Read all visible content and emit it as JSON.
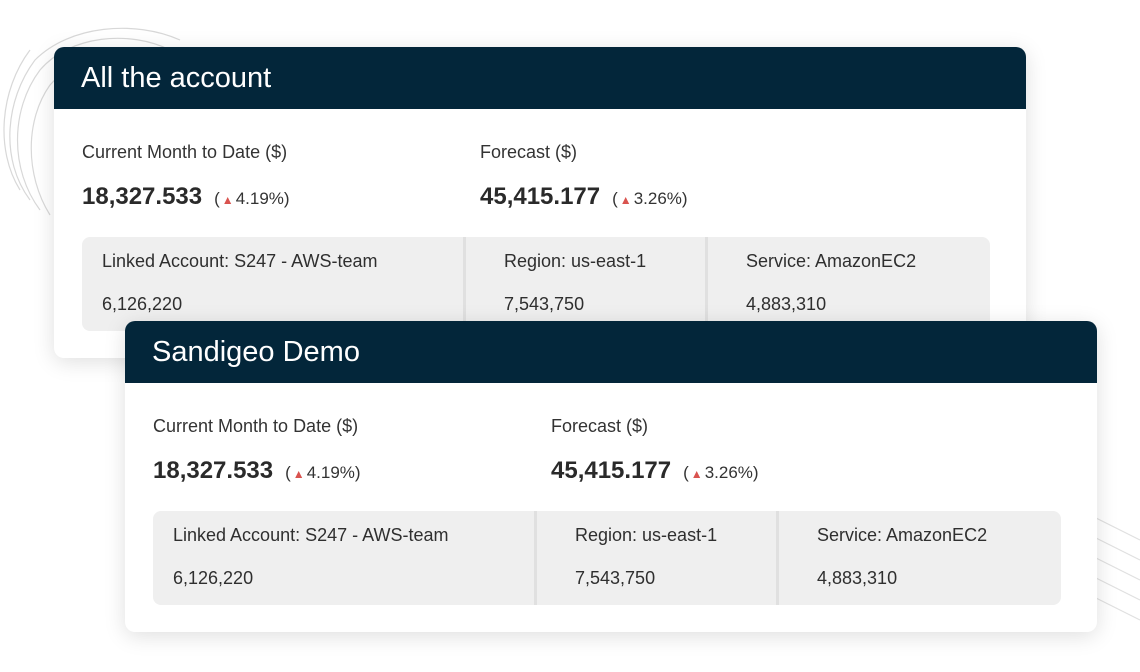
{
  "cards": [
    {
      "title": "All the account",
      "mtd": {
        "label": "Current Month to Date ($)",
        "value": "18,327.533",
        "change": "4.19%"
      },
      "forecast": {
        "label": "Forecast ($)",
        "value": "45,415.177",
        "change": "3.26%"
      },
      "breakdown": [
        {
          "label": "Linked Account: S247 - AWS-team",
          "value": "6,126,220"
        },
        {
          "label": "Region: us-east-1",
          "value": "7,543,750"
        },
        {
          "label": "Service: AmazonEC2",
          "value": "4,883,310"
        }
      ]
    },
    {
      "title": "Sandigeo Demo",
      "mtd": {
        "label": "Current Month to Date ($)",
        "value": "18,327.533",
        "change": "4.19%"
      },
      "forecast": {
        "label": "Forecast ($)",
        "value": "45,415.177",
        "change": "3.26%"
      },
      "breakdown": [
        {
          "label": "Linked Account: S247 - AWS-team",
          "value": "6,126,220"
        },
        {
          "label": "Region: us-east-1",
          "value": "7,543,750"
        },
        {
          "label": "Service: AmazonEC2",
          "value": "4,883,310"
        }
      ]
    }
  ],
  "icons": {
    "change": "arrow-up-icon"
  },
  "colors": {
    "header": "#03263a",
    "up_arrow": "#d9534f"
  }
}
